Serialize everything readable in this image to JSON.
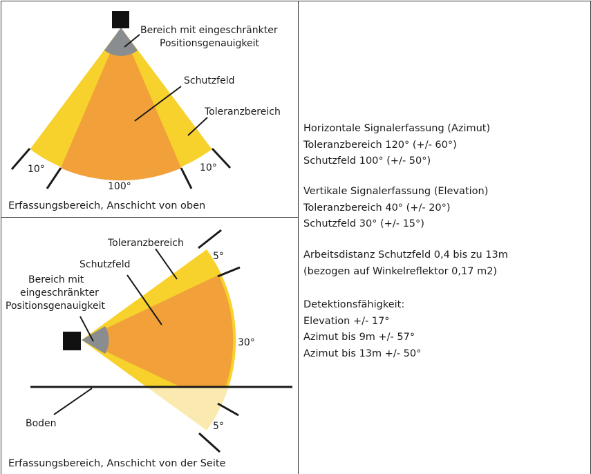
{
  "top_diagram": {
    "label_reduced_accuracy": [
      "Bereich mit eingeschränkter",
      "Positionsgenauigkeit"
    ],
    "label_protection_field": "Schutzfeld",
    "label_tolerance_range": "Toleranzbereich",
    "angle_left": "10°",
    "angle_right": "10°",
    "angle_bottom": "100°",
    "caption": "Erfassungsbereich, Anschicht von oben"
  },
  "bottom_diagram": {
    "label_tolerance_range": "Toleranzbereich",
    "label_protection_field": "Schutzfeld",
    "label_reduced_accuracy": [
      "Bereich mit",
      "eingeschränkter",
      "Positionsgenauigkeit"
    ],
    "angle_top": "5°",
    "angle_middle": "30°",
    "angle_bottom": "5°",
    "label_ground": "Boden",
    "caption": "Erfassungsbereich, Anschicht von der Seite"
  },
  "info": {
    "azimut": [
      "Horizontale Signalerfassung (Azimut)",
      "Toleranzbereich 120° (+/- 60°)",
      "Schutzfeld 100° (+/- 50°)"
    ],
    "elevation": [
      "Vertikale Signalerfassung (Elevation)",
      "Toleranzbereich 40° (+/- 20°)",
      "Schutzfeld 30° (+/- 15°)"
    ],
    "distanz": [
      "Arbeitsdistanz Schutzfeld 0,4 bis zu 13m",
      "(bezogen auf Winkelreflektor 0,17 m2)"
    ],
    "detektion": [
      "Detektionsfähigkeit:",
      "Elevation +/- 17°",
      "Azimut bis 9m +/- 57°",
      "Azimut bis 13m +/- 50°"
    ]
  },
  "colors": {
    "tolerance": "#f7d12c",
    "protection": "#f1a03a",
    "reduced_accuracy": "#8a8d8f",
    "sensor": "#111111",
    "ground_fade": "#fbeab0"
  }
}
